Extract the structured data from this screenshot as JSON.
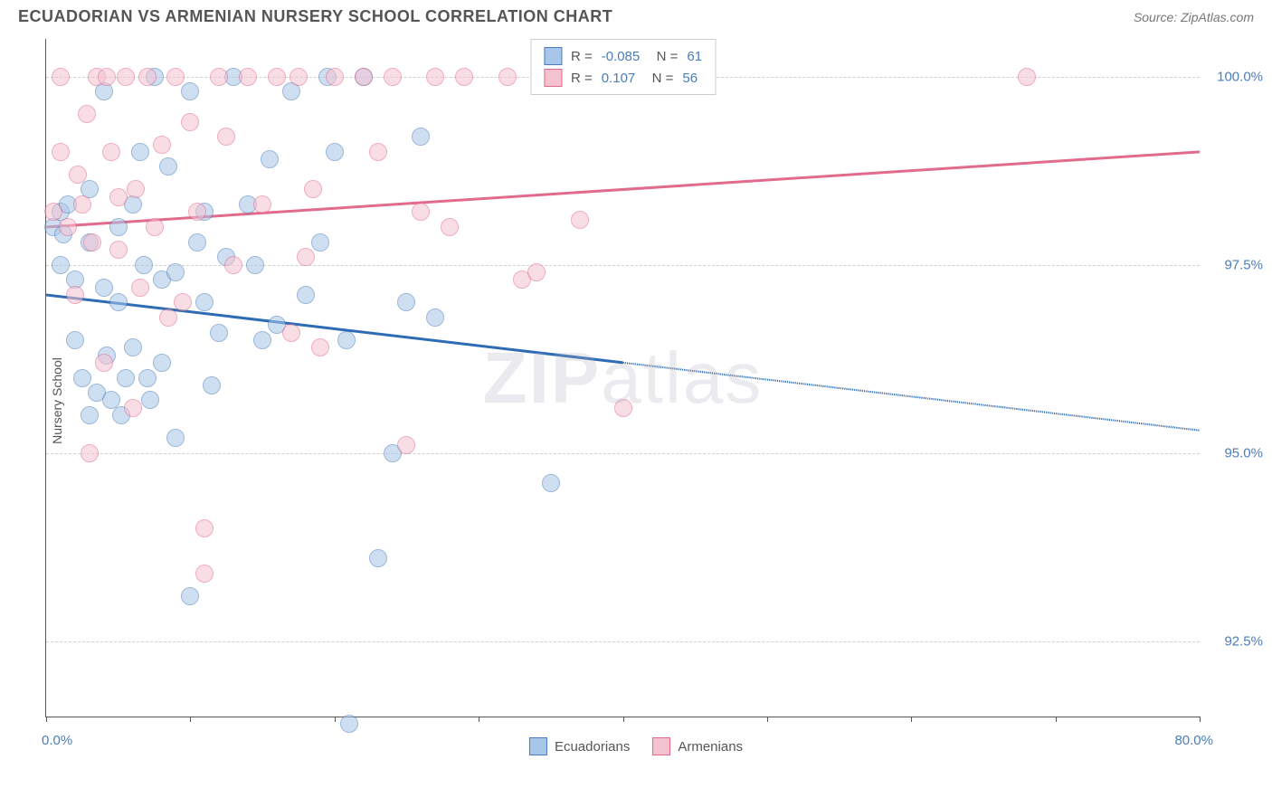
{
  "header": {
    "title": "ECUADORIAN VS ARMENIAN NURSERY SCHOOL CORRELATION CHART",
    "source": "Source: ZipAtlas.com"
  },
  "watermark": {
    "part1": "ZIP",
    "part2": "atlas"
  },
  "chart": {
    "type": "scatter",
    "y_axis_title": "Nursery School",
    "xlim": [
      0.0,
      80.0
    ],
    "ylim": [
      91.5,
      100.5
    ],
    "x_min_label": "0.0%",
    "x_max_label": "80.0%",
    "x_ticks": [
      0,
      10,
      20,
      30,
      40,
      50,
      60,
      70,
      80
    ],
    "y_gridlines": [
      92.5,
      95.0,
      97.5,
      100.0
    ],
    "y_tick_labels": [
      "92.5%",
      "95.0%",
      "97.5%",
      "100.0%"
    ],
    "background_color": "#ffffff",
    "grid_color": "#d0d0d0",
    "axis_color": "#555555",
    "tick_label_color": "#4a7ebb",
    "marker_radius": 10,
    "marker_opacity": 0.55,
    "series": [
      {
        "name": "Ecuadorians",
        "color_fill": "#a8c6e8",
        "color_stroke": "#4a7ebb",
        "R": "-0.085",
        "N": "61",
        "trend": {
          "x1": 0,
          "y1": 97.1,
          "x2": 40,
          "y2": 96.2,
          "x2_dash": 80,
          "y2_dash": 95.3,
          "color": "#2e6cb5",
          "width": 3
        },
        "points": [
          [
            0.5,
            98.0
          ],
          [
            1,
            98.2
          ],
          [
            1.2,
            97.9
          ],
          [
            1.5,
            98.3
          ],
          [
            1,
            97.5
          ],
          [
            2,
            97.3
          ],
          [
            2.5,
            96.0
          ],
          [
            2,
            96.5
          ],
          [
            3,
            98.5
          ],
          [
            3,
            97.8
          ],
          [
            3.5,
            95.8
          ],
          [
            3,
            95.5
          ],
          [
            4,
            97.2
          ],
          [
            4.2,
            96.3
          ],
          [
            4.5,
            95.7
          ],
          [
            4,
            99.8
          ],
          [
            5,
            97.0
          ],
          [
            5,
            98.0
          ],
          [
            5.5,
            96.0
          ],
          [
            5.2,
            95.5
          ],
          [
            6,
            96.4
          ],
          [
            6.5,
            99.0
          ],
          [
            6,
            98.3
          ],
          [
            6.8,
            97.5
          ],
          [
            7,
            96.0
          ],
          [
            7.2,
            95.7
          ],
          [
            7.5,
            100.0
          ],
          [
            8,
            97.3
          ],
          [
            8.5,
            98.8
          ],
          [
            8,
            96.2
          ],
          [
            9,
            97.4
          ],
          [
            9,
            95.2
          ],
          [
            10,
            93.1
          ],
          [
            10.5,
            97.8
          ],
          [
            10,
            99.8
          ],
          [
            11,
            97.0
          ],
          [
            11.5,
            95.9
          ],
          [
            11,
            98.2
          ],
          [
            12,
            96.6
          ],
          [
            12.5,
            97.6
          ],
          [
            13,
            100.0
          ],
          [
            14,
            98.3
          ],
          [
            14.5,
            97.5
          ],
          [
            15,
            96.5
          ],
          [
            15.5,
            98.9
          ],
          [
            16,
            96.7
          ],
          [
            17,
            99.8
          ],
          [
            18,
            97.1
          ],
          [
            19,
            97.8
          ],
          [
            19.5,
            100.0
          ],
          [
            20,
            99.0
          ],
          [
            20.8,
            96.5
          ],
          [
            21,
            91.4
          ],
          [
            22,
            100.0
          ],
          [
            23,
            93.6
          ],
          [
            24,
            95.0
          ],
          [
            25,
            97.0
          ],
          [
            26,
            99.2
          ],
          [
            27,
            96.8
          ],
          [
            35,
            94.6
          ],
          [
            38,
            100.0
          ]
        ]
      },
      {
        "name": "Armenians",
        "color_fill": "#f5c2d0",
        "color_stroke": "#e16b8c",
        "R": "0.107",
        "N": "56",
        "trend": {
          "x1": 0,
          "y1": 98.0,
          "x2": 80,
          "y2": 99.0,
          "color": "#e16b8c",
          "width": 3
        },
        "points": [
          [
            0.5,
            98.2
          ],
          [
            1,
            99.0
          ],
          [
            1,
            100.0
          ],
          [
            1.5,
            98.0
          ],
          [
            2,
            97.1
          ],
          [
            2.2,
            98.7
          ],
          [
            2.5,
            98.3
          ],
          [
            2.8,
            99.5
          ],
          [
            3,
            95.0
          ],
          [
            3.2,
            97.8
          ],
          [
            3.5,
            100.0
          ],
          [
            4,
            96.2
          ],
          [
            4.2,
            100.0
          ],
          [
            4.5,
            99.0
          ],
          [
            5,
            97.7
          ],
          [
            5,
            98.4
          ],
          [
            5.5,
            100.0
          ],
          [
            6,
            95.6
          ],
          [
            6.2,
            98.5
          ],
          [
            6.5,
            97.2
          ],
          [
            7,
            100.0
          ],
          [
            7.5,
            98.0
          ],
          [
            8,
            99.1
          ],
          [
            8.5,
            96.8
          ],
          [
            9,
            100.0
          ],
          [
            9.5,
            97.0
          ],
          [
            10,
            99.4
          ],
          [
            10.5,
            98.2
          ],
          [
            11,
            94.0
          ],
          [
            11,
            93.4
          ],
          [
            12,
            100.0
          ],
          [
            12.5,
            99.2
          ],
          [
            13,
            97.5
          ],
          [
            14,
            100.0
          ],
          [
            15,
            98.3
          ],
          [
            16,
            100.0
          ],
          [
            17,
            96.6
          ],
          [
            17.5,
            100.0
          ],
          [
            18,
            97.6
          ],
          [
            18.5,
            98.5
          ],
          [
            19,
            96.4
          ],
          [
            20,
            100.0
          ],
          [
            22,
            100.0
          ],
          [
            23,
            99.0
          ],
          [
            24,
            100.0
          ],
          [
            25,
            95.1
          ],
          [
            26,
            98.2
          ],
          [
            27,
            100.0
          ],
          [
            28,
            98.0
          ],
          [
            29,
            100.0
          ],
          [
            32,
            100.0
          ],
          [
            33,
            97.3
          ],
          [
            34,
            97.4
          ],
          [
            37,
            98.1
          ],
          [
            40,
            95.6
          ],
          [
            68,
            100.0
          ]
        ]
      }
    ]
  },
  "legend_bottom": [
    {
      "label": "Ecuadorians",
      "fill": "#a8c6e8",
      "stroke": "#4a7ebb"
    },
    {
      "label": "Armenians",
      "fill": "#f5c2d0",
      "stroke": "#e16b8c"
    }
  ]
}
